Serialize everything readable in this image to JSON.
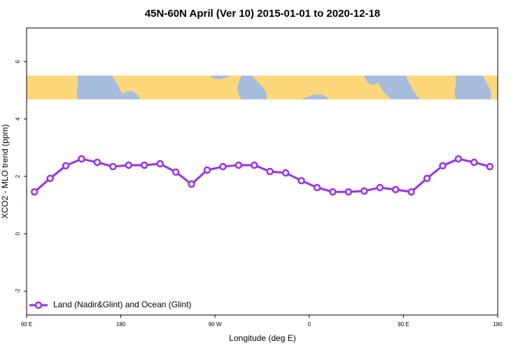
{
  "chart_data": {
    "type": "line",
    "title": "45N-60N April (Ver 10)   2015-01-01 to 2020-12-18",
    "x_label": "Longitude (deg E)",
    "y_label": "XCO2 - MLO trend (ppm)",
    "x": [
      97.5,
      112.5,
      127.5,
      142.5,
      157.5,
      172.5,
      187.5,
      202.5,
      217.5,
      232.5,
      247.5,
      262.5,
      277.5,
      292.5,
      307.5,
      322.5,
      337.5,
      352.5,
      367.5,
      382.5,
      397.5,
      412.5,
      427.5,
      442.5,
      457.5,
      472.5,
      487.5,
      502.5,
      517.5,
      532.5
    ],
    "series": [
      {
        "name": "Land (Nadir&Glint) and Ocean (Glint)",
        "color": "#9b30e8",
        "values": [
          1.46,
          1.93,
          2.37,
          2.61,
          2.49,
          2.34,
          2.39,
          2.39,
          2.44,
          2.15,
          1.73,
          2.22,
          2.34,
          2.39,
          2.39,
          2.17,
          2.12,
          1.85,
          1.61,
          1.46,
          1.46,
          1.49,
          1.61,
          1.54,
          1.46,
          1.93,
          2.37,
          2.61,
          2.49,
          2.34
        ]
      }
    ],
    "xlim": [
      90,
      540
    ],
    "xticks": [
      {
        "value": 90,
        "label": "90 E"
      },
      180,
      {
        "value": 270,
        "label": "90 W"
      },
      {
        "value": 360,
        "label": "0"
      },
      {
        "value": 450,
        "label": "90 E"
      },
      {
        "value": 540,
        "label": "180"
      }
    ],
    "ylim": [
      -2.83,
      7.17
    ],
    "yticks": [
      -2,
      0,
      2,
      4,
      6
    ],
    "legend": "bottom-left"
  }
}
